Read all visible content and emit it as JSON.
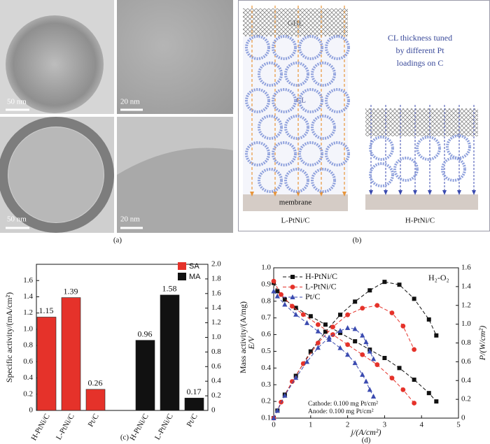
{
  "panel_a": {
    "scale_bars": [
      "50 nm",
      "20 nm",
      "50 nm",
      "20 nm"
    ],
    "caption": "(a)"
  },
  "panel_b": {
    "gdl": "GDL",
    "cl": "CL",
    "membrane": "membrane",
    "left_label": "L-PtNi/C",
    "right_label": "H-PtNi/C",
    "note": [
      "CL thickness tuned",
      "by different Pt",
      "loadings on C"
    ],
    "caption": "(b)"
  },
  "chart_data": [
    {
      "type": "bar",
      "caption": "(c)",
      "y_label": "Specific activity/(mA/cm²)",
      "y2_label": "Mass activity/(A/mg)",
      "categories": [
        "H-PtNi/C",
        "L-PtNi/C",
        "Pt/C",
        "H-PtNi/C",
        "L-PtNi/C",
        "Pt/C"
      ],
      "series": [
        {
          "name": "SA",
          "color": "#e5322a",
          "values": [
            1.15,
            1.39,
            0.26,
            null,
            null,
            null
          ]
        },
        {
          "name": "MA",
          "color": "#111111",
          "axis": "y2",
          "values": [
            null,
            null,
            null,
            0.96,
            1.58,
            0.17
          ]
        }
      ],
      "ylim": [
        0,
        1.8
      ],
      "yticks": [
        0,
        0.2,
        0.4,
        0.6,
        0.8,
        {
          "value": 1,
          "label": "1.0"
        },
        1.2,
        1.4,
        1.6
      ],
      "y2lim": [
        0,
        2
      ],
      "y2ticks": [
        0,
        0.2,
        0.4,
        0.6,
        0.8,
        {
          "value": 1,
          "label": "1.0"
        },
        1.2,
        1.4,
        1.6,
        1.8,
        {
          "value": 2,
          "label": "2.0"
        }
      ],
      "legend": "upper right"
    },
    {
      "type": "line",
      "caption": "(d)",
      "x_label": "j/(A/cm²)",
      "y_label": "E/V",
      "y2_label": "P/(W/cm²)",
      "annotations": [
        "H₂-O₂",
        "Cathode: 0.100 mg Pt/cm²",
        "Anode: 0.100 mg Pt/cm²"
      ],
      "xlim": [
        0,
        5
      ],
      "xticks": [
        0,
        1,
        2,
        3,
        4,
        5
      ],
      "ylim": [
        0.1,
        1
      ],
      "yticks": [
        0.1,
        0.2,
        0.3,
        0.4,
        0.5,
        0.6,
        0.7,
        0.8,
        0.9,
        {
          "value": 1,
          "label": "1.0"
        }
      ],
      "y2lim": [
        0,
        1.6
      ],
      "y2ticks": [
        0,
        0.2,
        0.4,
        0.6,
        0.8,
        {
          "value": 1,
          "label": "1.0"
        },
        1.2,
        1.4,
        1.6
      ],
      "legend": "upper left",
      "series": [
        {
          "name": "H-PtNi/C",
          "color": "#111111",
          "marker": "square",
          "x": [
            0,
            0.1,
            0.3,
            0.6,
            1.0,
            1.4,
            1.8,
            2.2,
            2.6,
            3.0,
            3.4,
            3.8,
            4.2,
            4.4
          ],
          "values": [
            0.91,
            0.86,
            0.81,
            0.76,
            0.71,
            0.66,
            0.61,
            0.56,
            0.51,
            0.46,
            0.4,
            0.33,
            0.25,
            0.2
          ],
          "power": [
            0,
            0.08,
            0.25,
            0.45,
            0.71,
            0.92,
            1.1,
            1.24,
            1.36,
            1.45,
            1.42,
            1.27,
            1.05,
            0.88
          ]
        },
        {
          "name": "L-PtNi/C",
          "color": "#e5322a",
          "marker": "circle",
          "x": [
            0,
            0.2,
            0.5,
            0.8,
            1.2,
            1.6,
            2.0,
            2.4,
            2.8,
            3.2,
            3.5,
            3.8
          ],
          "values": [
            0.92,
            0.84,
            0.77,
            0.72,
            0.66,
            0.6,
            0.54,
            0.48,
            0.42,
            0.34,
            0.27,
            0.19
          ],
          "power": [
            0,
            0.17,
            0.39,
            0.58,
            0.8,
            0.97,
            1.1,
            1.17,
            1.2,
            1.12,
            0.98,
            0.73
          ]
        },
        {
          "name": "Pt/C",
          "color": "#3b4bb0",
          "marker": "triangle",
          "x": [
            0,
            0.1,
            0.3,
            0.6,
            0.9,
            1.2,
            1.5,
            1.8,
            2.0,
            2.2,
            2.4,
            2.5,
            2.6,
            2.7
          ],
          "values": [
            0.86,
            0.83,
            0.78,
            0.72,
            0.67,
            0.62,
            0.57,
            0.52,
            0.48,
            0.43,
            0.36,
            0.32,
            0.27,
            0.23
          ],
          "power": [
            0,
            0.08,
            0.24,
            0.43,
            0.6,
            0.75,
            0.86,
            0.93,
            0.96,
            0.95,
            0.88,
            0.81,
            0.71,
            0.63
          ]
        }
      ]
    }
  ]
}
